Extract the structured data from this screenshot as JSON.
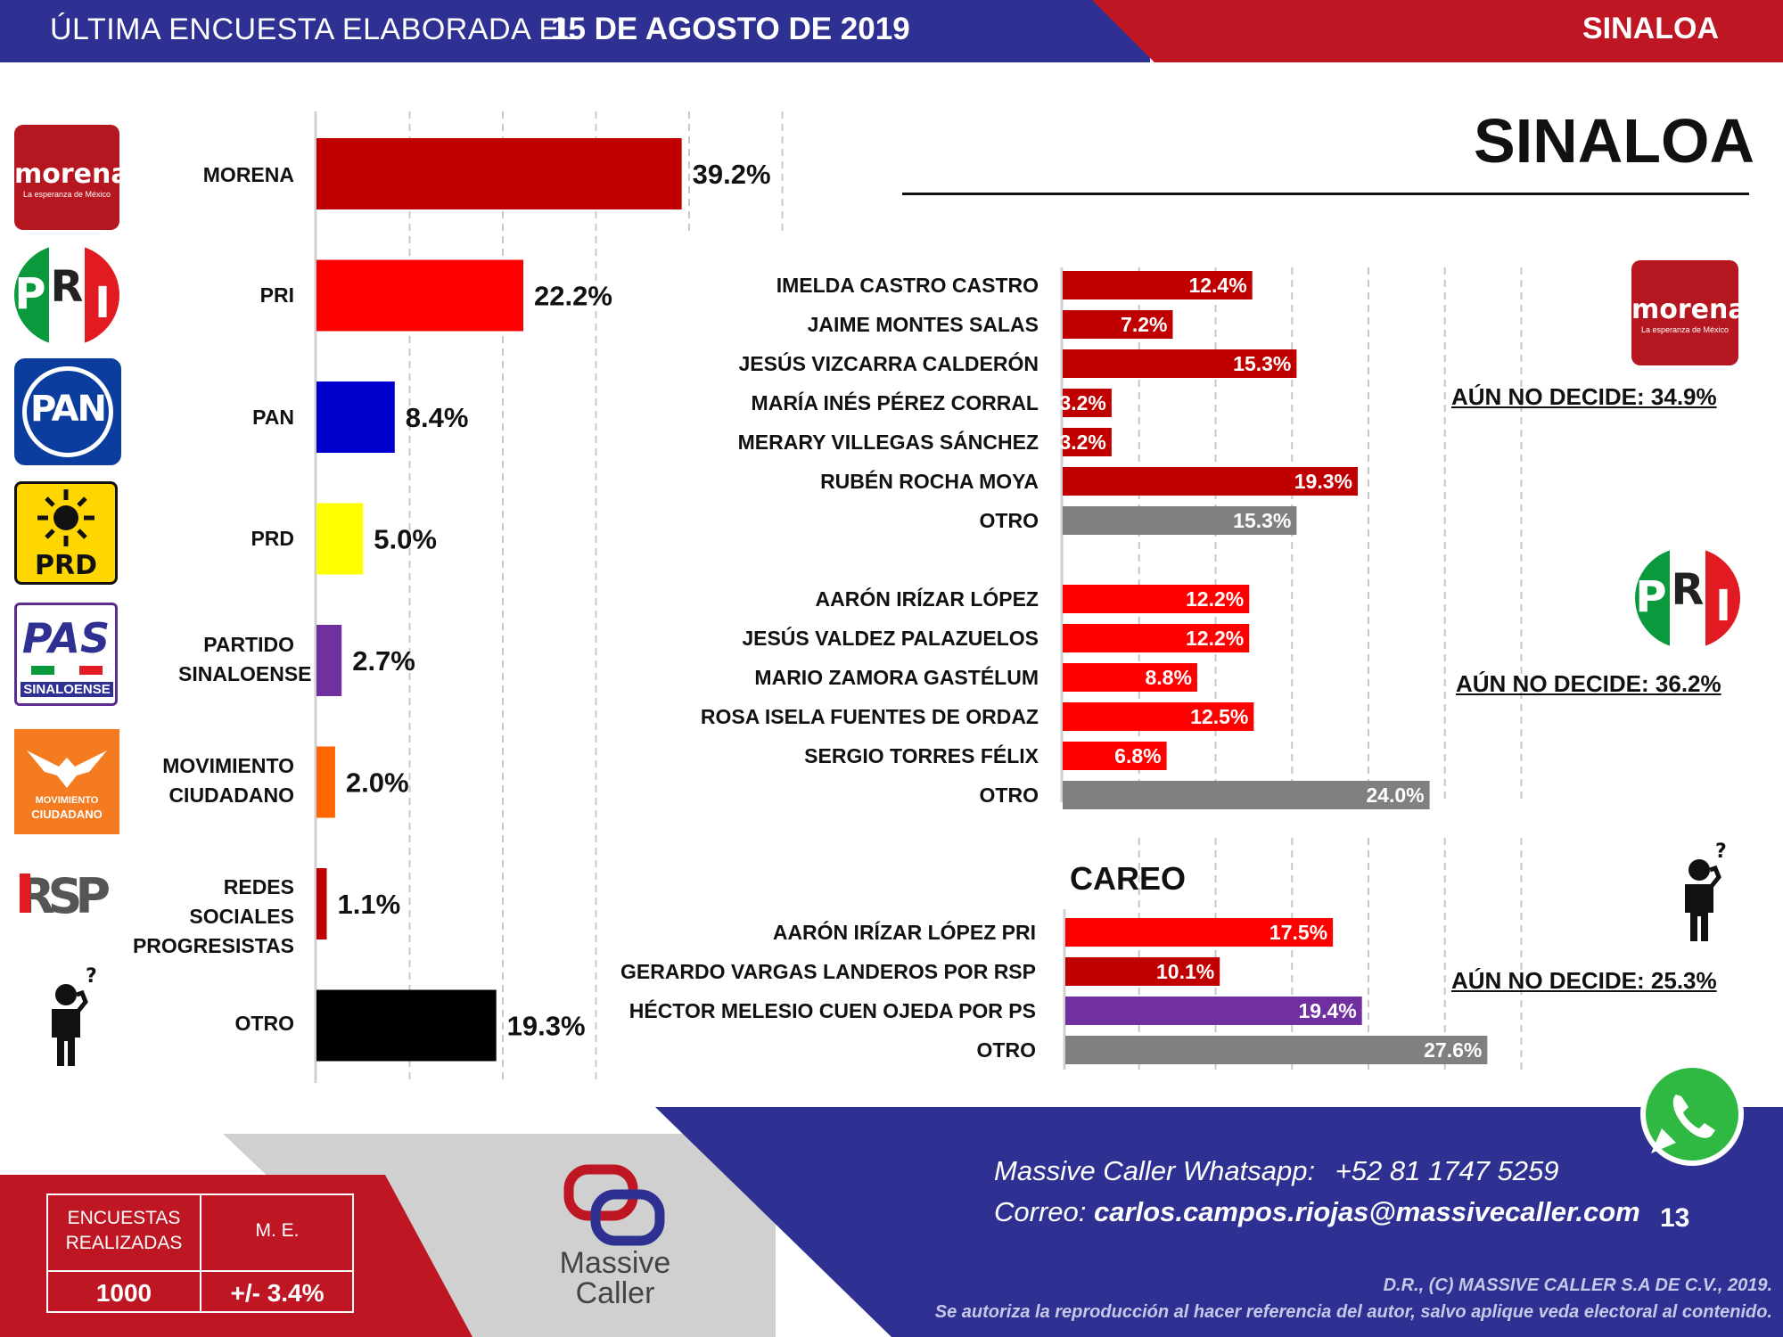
{
  "header": {
    "prefix": "ÚLTIMA ENCUESTA ELABORADA EL",
    "date": "15 DE AGOSTO DE 2019",
    "region": "SINALOA"
  },
  "logos": {
    "morena_word": "morena",
    "morena_sub": "La esperanza de México",
    "pri_letters": [
      "P",
      "R",
      "I"
    ],
    "pan": "PAN",
    "prd": "PRD",
    "pas": "PAS",
    "pas_sub": "SINALOENSE",
    "mc_line1": "MOVIMIENTO",
    "mc_line2": "CIUDADANO",
    "rsp": "RSP"
  },
  "colors": {
    "morena": "#c00000",
    "pri": "#ff0000",
    "pan": "#0000cc",
    "prd": "#ffff00",
    "ps": "#7030a0",
    "mc": "#ff6600",
    "rsp": "#c00000",
    "otro": "#000000",
    "grey": "#808080",
    "brand_blue": "#2e3192",
    "brand_red": "#be1622"
  },
  "chart_data": [
    {
      "type": "bar",
      "orientation": "horizontal",
      "categories": [
        "MORENA",
        "PRI",
        "PAN",
        "PRD",
        "PARTIDO SINALOENSE",
        "MOVIMIENTO CIUDADANO",
        "REDES SOCIALES PROGRESISTAS",
        "OTRO"
      ],
      "values": [
        39.2,
        22.2,
        8.4,
        5.0,
        2.7,
        2.0,
        1.1,
        19.3
      ],
      "labels": [
        "39.2%",
        "22.2%",
        "8.4%",
        "5.0%",
        "2.7%",
        "2.0%",
        "1.1%",
        "19.3%"
      ],
      "colors": [
        "#c00000",
        "#ff0000",
        "#0000cc",
        "#ffff00",
        "#7030a0",
        "#ff6600",
        "#c00000",
        "#000000"
      ],
      "xlim": [
        0,
        50
      ],
      "grid": true
    },
    {
      "type": "bar",
      "orientation": "horizontal",
      "title": "SINALOA",
      "groups": [
        {
          "party": "MORENA",
          "categories": [
            "IMELDA CASTRO CASTRO",
            "JAIME MONTES SALAS",
            "JESÚS VIZCARRA CALDERÓN",
            "MARÍA INÉS PÉREZ CORRAL",
            "MERARY VILLEGAS SÁNCHEZ",
            "RUBÉN ROCHA MOYA",
            "OTRO"
          ],
          "values": [
            12.4,
            7.2,
            15.3,
            3.2,
            3.2,
            19.3,
            15.3
          ],
          "labels": [
            "12.4%",
            "7.2%",
            "15.3%",
            "3.2%",
            "3.2%",
            "19.3%",
            "15.3%"
          ],
          "colors": [
            "#c00000",
            "#c00000",
            "#c00000",
            "#c00000",
            "#c00000",
            "#c00000",
            "#808080"
          ],
          "undecided": "AÚN NO DECIDE: 34.9%"
        },
        {
          "party": "PRI",
          "categories": [
            "AARÓN IRÍZAR LÓPEZ",
            "JESÚS VALDEZ PALAZUELOS",
            "MARIO ZAMORA GASTÉLUM",
            "ROSA ISELA FUENTES DE ORDAZ",
            "SERGIO TORRES FÉLIX",
            "OTRO"
          ],
          "values": [
            12.2,
            12.2,
            8.8,
            12.5,
            6.8,
            24.0
          ],
          "labels": [
            "12.2%",
            "12.2%",
            "8.8%",
            "12.5%",
            "6.8%",
            "24.0%"
          ],
          "colors": [
            "#ff0000",
            "#ff0000",
            "#ff0000",
            "#ff0000",
            "#ff0000",
            "#808080"
          ],
          "undecided": "AÚN NO DECIDE: 36.2%"
        },
        {
          "party": "CAREO",
          "heading": "CAREO",
          "categories": [
            "AARÓN IRÍZAR LÓPEZ PRI",
            "GERARDO VARGAS LANDEROS POR RSP",
            "HÉCTOR MELESIO CUEN OJEDA POR PS",
            "OTRO"
          ],
          "values": [
            17.5,
            10.1,
            19.4,
            27.6
          ],
          "labels": [
            "17.5%",
            "10.1%",
            "19.4%",
            "27.6%"
          ],
          "colors": [
            "#ff0000",
            "#c00000",
            "#7030a0",
            "#808080"
          ],
          "undecided": "AÚN NO DECIDE: 25.3%"
        }
      ],
      "xlim": [
        0,
        30
      ],
      "grid": true
    }
  ],
  "footer": {
    "stats": {
      "surveys_label": "ENCUESTAS REALIZADAS",
      "surveys_value": "1000",
      "me_label": "M. E.",
      "me_value": "+/- 3.4%"
    },
    "brand_line1": "Massive",
    "brand_line2": "Caller",
    "whatsapp_label": "Massive Caller Whatsapp:",
    "whatsapp_number": "+52  81 1747 5259",
    "email_label": "Correo:",
    "email": "carlos.campos.riojas@massivecaller.com",
    "page_number": "13",
    "copyright1": "D.R., (C) MASSIVE CALLER S.A DE C.V., 2019.",
    "copyright2": "Se autoriza la reproducción al hacer referencia del autor, salvo aplique veda electoral al contenido."
  }
}
